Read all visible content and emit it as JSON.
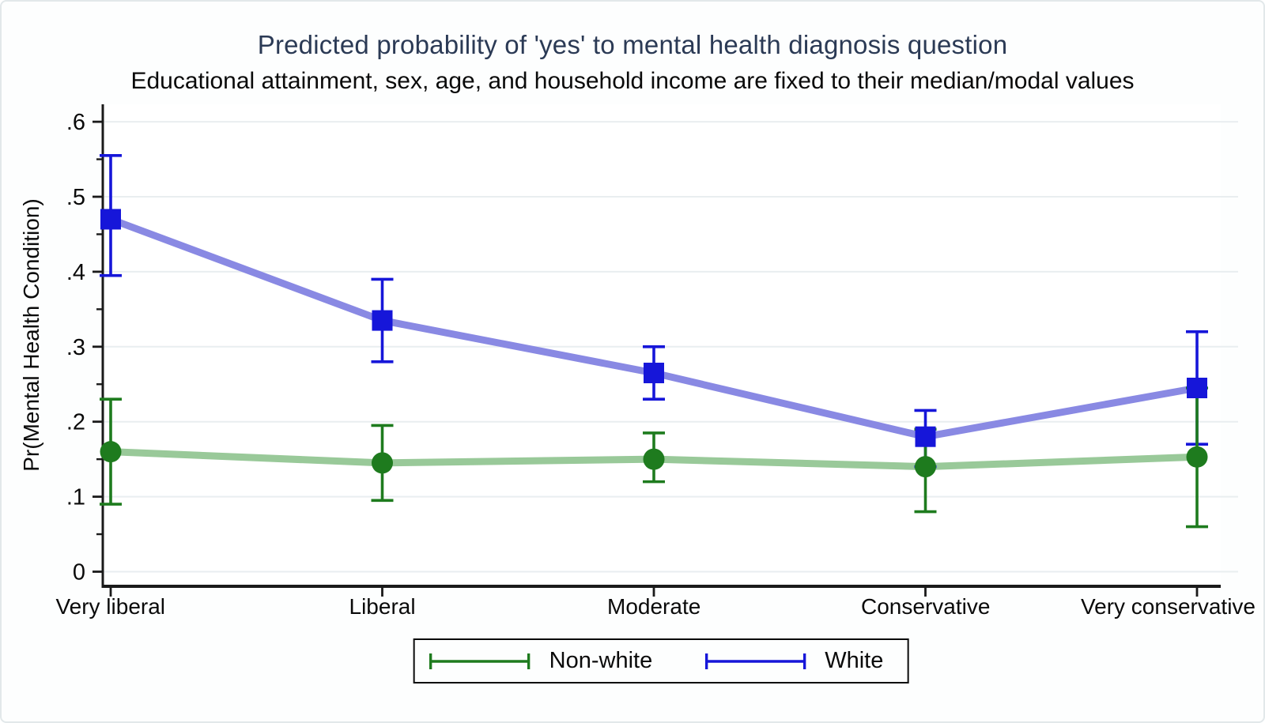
{
  "figure": {
    "title": "Predicted probability of 'yes' to mental health diagnosis question",
    "subtitle": "Educational attainment, sex, age, and household income are fixed to their median/modal values",
    "title_color": "#2b3a55",
    "text_color": "#0a0a0a"
  },
  "chart_data": {
    "type": "line",
    "title": "Predicted probability of 'yes' to mental health diagnosis question",
    "subtitle": "Educational attainment, sex, age, and household income are fixed to their median/modal values",
    "xlabel": "",
    "ylabel": "Pr(Mental Health Condition)",
    "ylim": [
      0,
      0.6
    ],
    "grid": true,
    "legend_position": "bottom-center",
    "categories": [
      "Very liberal",
      "Liberal",
      "Moderate",
      "Conservative",
      "Very conservative"
    ],
    "y_ticks": [
      {
        "value": 0,
        "label": "0"
      },
      {
        "value": 0.1,
        "label": ".1"
      },
      {
        "value": 0.2,
        "label": ".2"
      },
      {
        "value": 0.3,
        "label": ".3"
      },
      {
        "value": 0.4,
        "label": ".4"
      },
      {
        "value": 0.5,
        "label": ".5"
      },
      {
        "value": 0.6,
        "label": ".6"
      }
    ],
    "y_minor_ticks": [
      0.05,
      0.15,
      0.25,
      0.35,
      0.45,
      0.55
    ],
    "series": [
      {
        "name": "Non-white",
        "marker": "circle",
        "color": "#1e7b1e",
        "line_color": "#99c999",
        "values": [
          0.16,
          0.145,
          0.15,
          0.14,
          0.153
        ],
        "ci_low": [
          0.09,
          0.095,
          0.12,
          0.08,
          0.06
        ],
        "ci_high": [
          0.23,
          0.195,
          0.185,
          0.19,
          0.245
        ]
      },
      {
        "name": "White",
        "marker": "square",
        "color": "#1616d9",
        "line_color": "#8989e3",
        "values": [
          0.47,
          0.335,
          0.265,
          0.18,
          0.245
        ],
        "ci_low": [
          0.395,
          0.28,
          0.23,
          0.14,
          0.17
        ],
        "ci_high": [
          0.555,
          0.39,
          0.3,
          0.215,
          0.32
        ]
      }
    ],
    "style": {
      "grid_color": "#e9eef0",
      "axis_color": "#1a1a1a",
      "plot_background": "#ffffff"
    }
  }
}
